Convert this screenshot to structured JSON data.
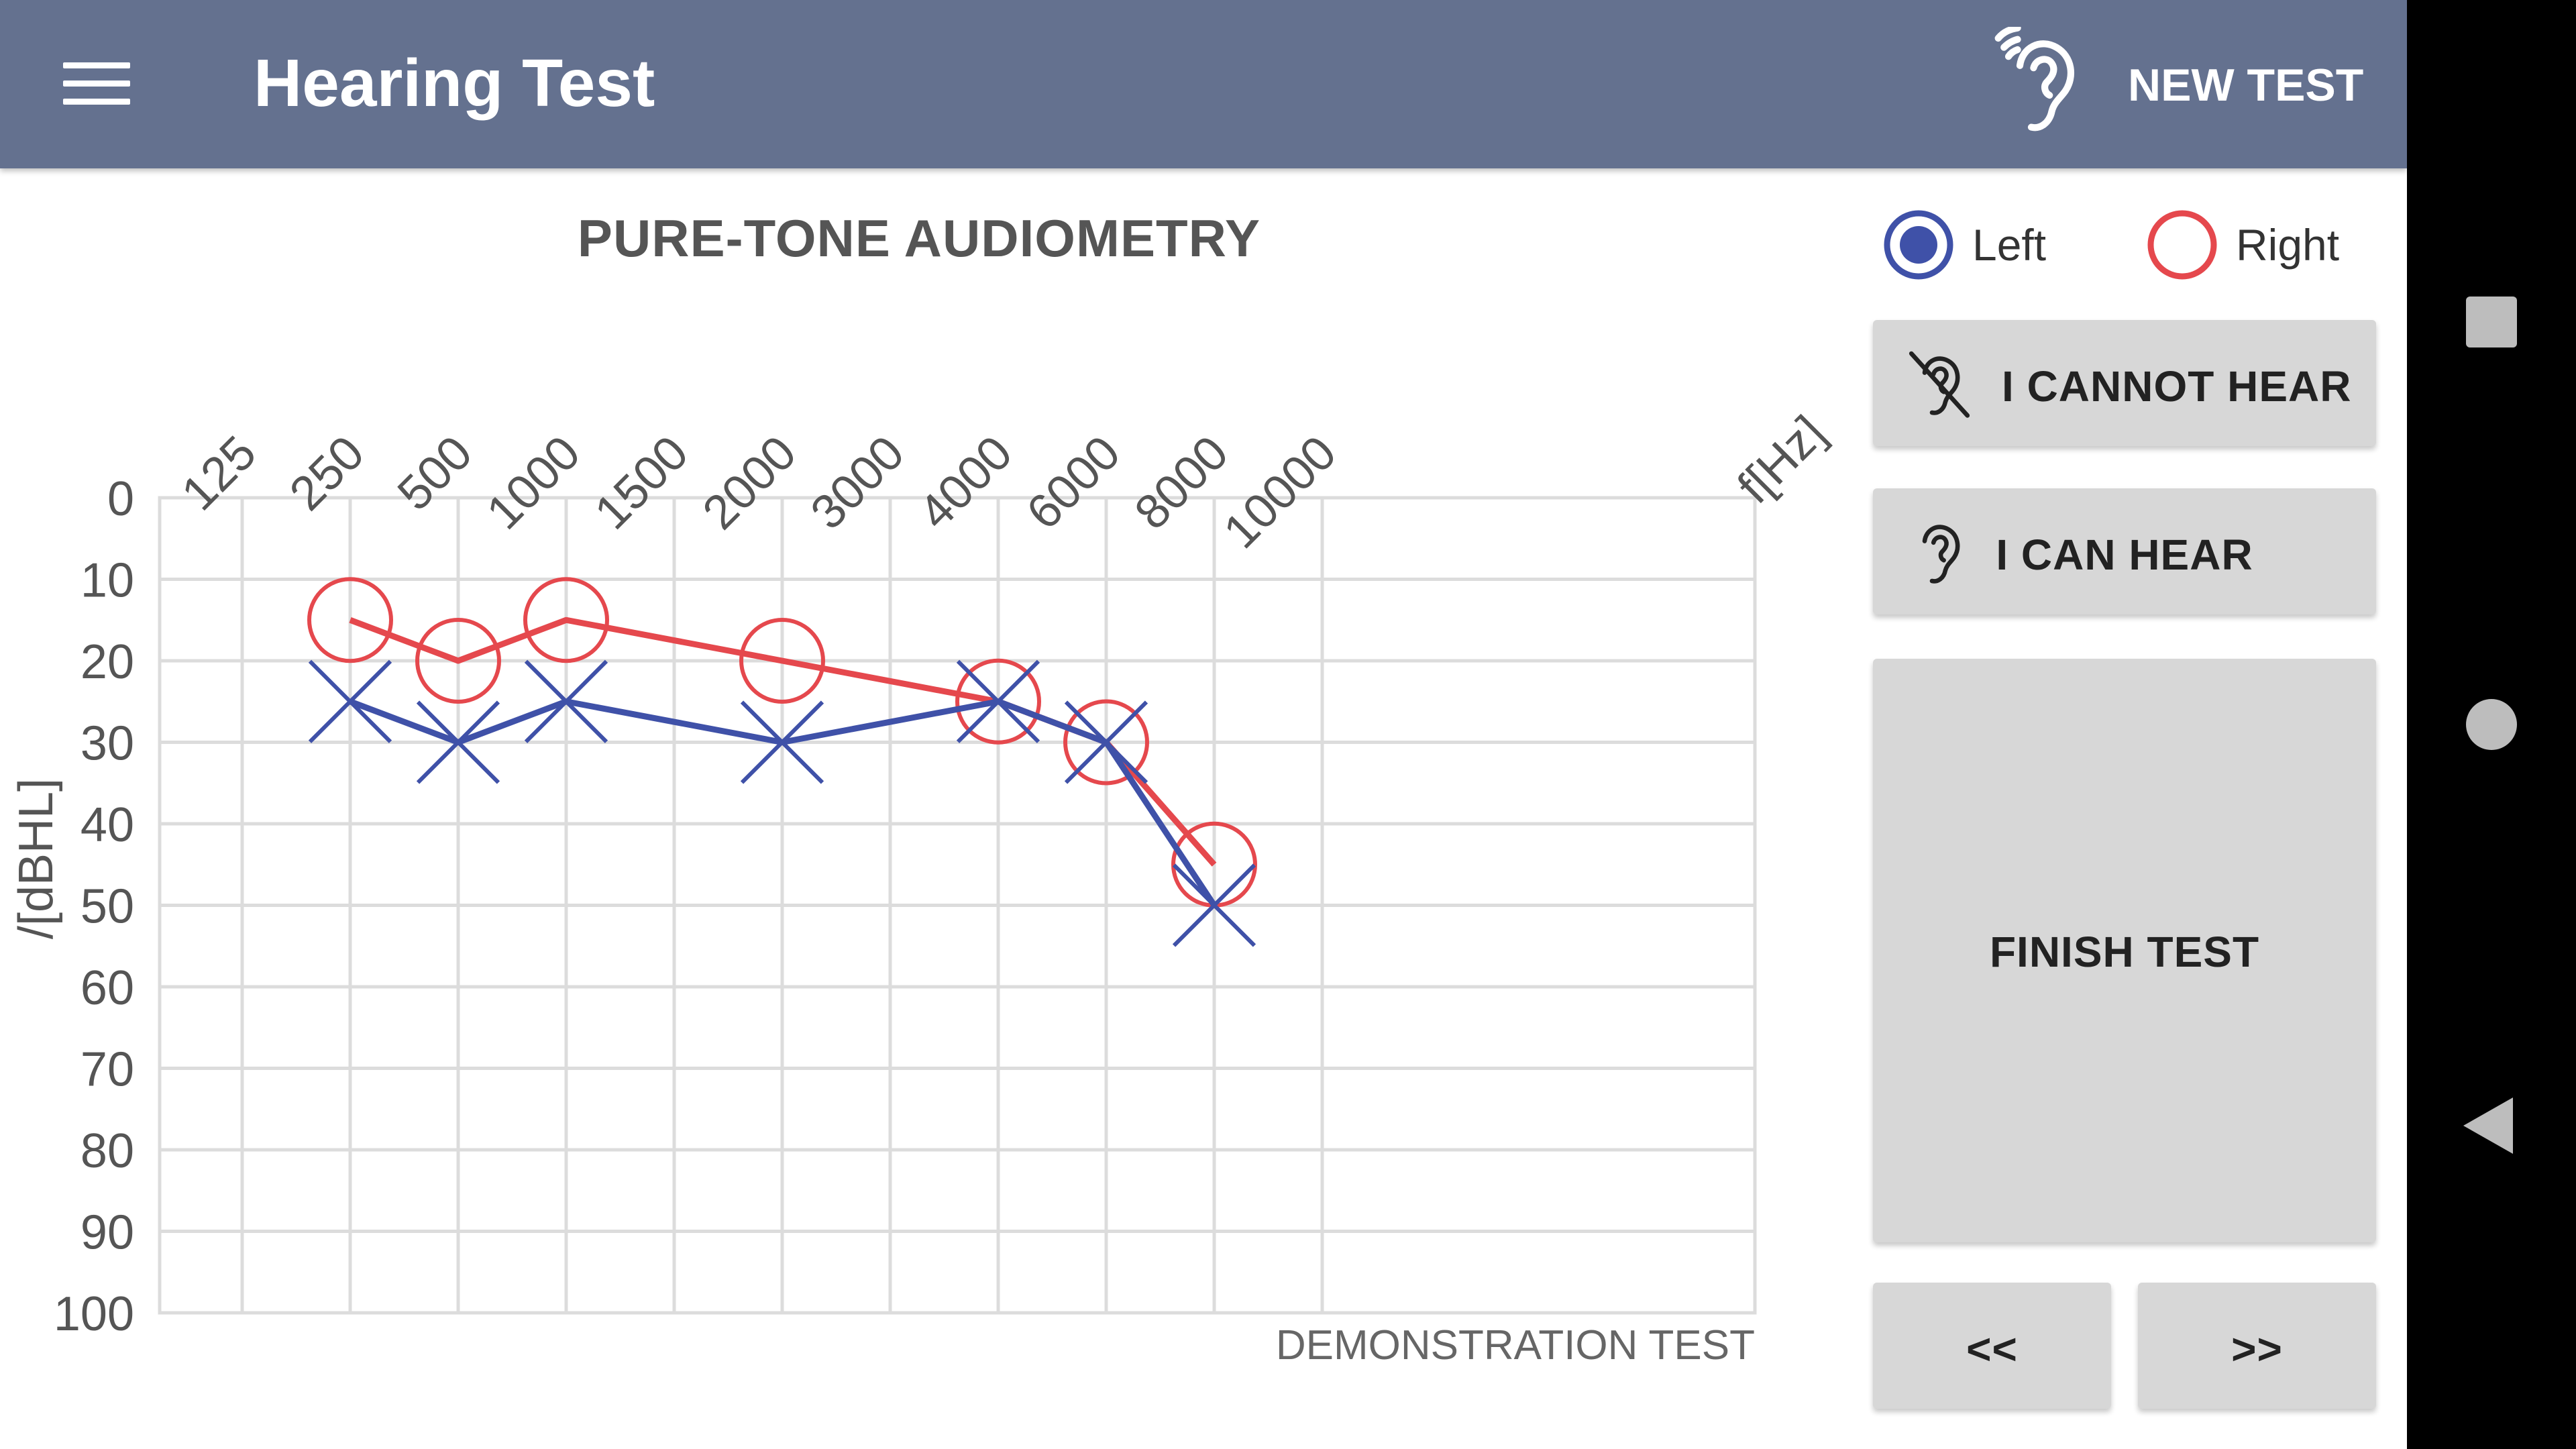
{
  "appbar": {
    "title": "Hearing Test",
    "menu_icon": "hamburger-menu-icon",
    "action_label": "NEW TEST",
    "action_icon": "ear-sound-icon",
    "background_color": "#64718f"
  },
  "chart_title": "PURE-TONE AUDIOMETRY",
  "legend": {
    "left_label": "Left",
    "right_label": "Right",
    "selected": "Left",
    "left_color": "#3f51a8",
    "right_color": "#e5484d"
  },
  "buttons": {
    "cannot_hear": "I CANNOT HEAR",
    "cannot_hear_icon": "ear-off-icon",
    "can_hear": "I CAN HEAR",
    "can_hear_icon": "ear-icon",
    "finish": "FINISH TEST",
    "prev": "<<",
    "next": ">>"
  },
  "footer_note": "DEMONSTRATION TEST",
  "chart_data": {
    "type": "line",
    "title": "PURE-TONE AUDIOMETRY",
    "x_label": "f[Hz]",
    "y_label": "/[dBHL]",
    "x_ticks": [
      "125",
      "250",
      "500",
      "1000",
      "1500",
      "2000",
      "3000",
      "4000",
      "6000",
      "8000",
      "10000"
    ],
    "y_ticks": [
      0,
      10,
      20,
      30,
      40,
      50,
      60,
      70,
      80,
      90,
      100
    ],
    "ylim": [
      0,
      100
    ],
    "y_inverted": true,
    "grid": true,
    "series": [
      {
        "name": "Right",
        "color": "#e5484d",
        "marker": "circle",
        "x": [
          "250",
          "500",
          "1000",
          "2000",
          "4000",
          "6000",
          "8000"
        ],
        "values": [
          15,
          20,
          15,
          20,
          25,
          30,
          45
        ]
      },
      {
        "name": "Left",
        "color": "#3f51a8",
        "marker": "cross",
        "x": [
          "250",
          "500",
          "1000",
          "2000",
          "4000",
          "6000",
          "8000"
        ],
        "values": [
          25,
          30,
          25,
          30,
          25,
          30,
          50
        ]
      }
    ]
  },
  "system_nav": {
    "recents_icon": "recents-square-icon",
    "home_icon": "home-circle-icon",
    "back_icon": "back-triangle-icon"
  }
}
